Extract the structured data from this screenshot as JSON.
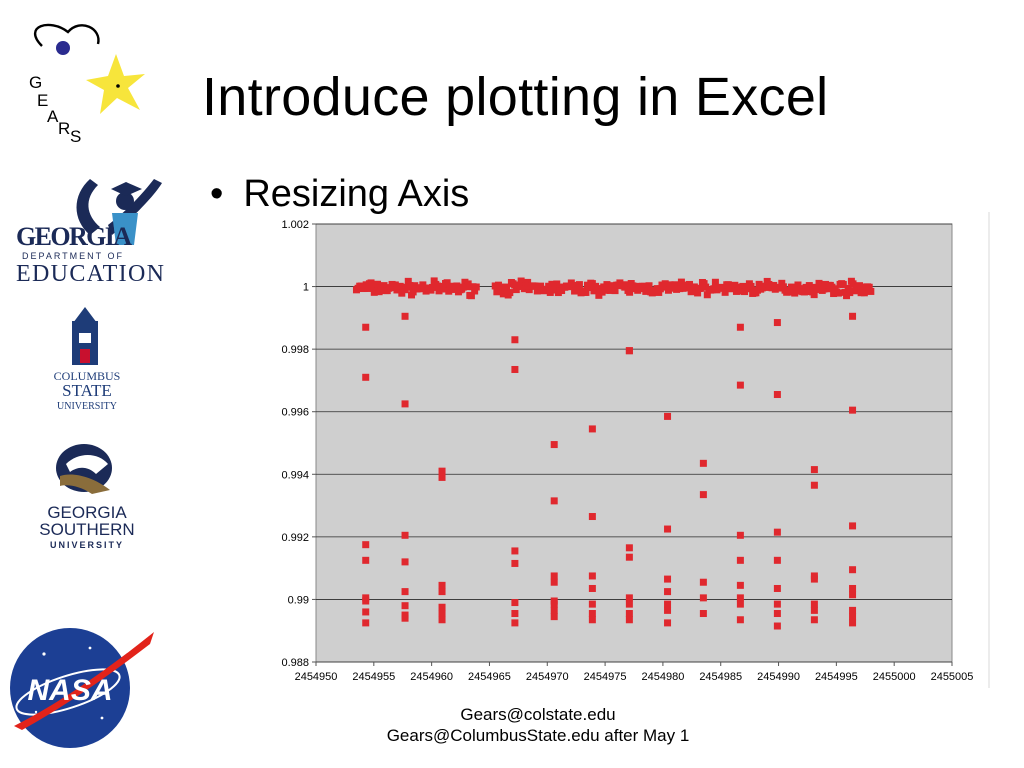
{
  "slide": {
    "title": "Introduce plotting in Excel",
    "bullet": "Resizing Axis",
    "footer_line1": "Gears@colstate.edu",
    "footer_line2": "Gears@ColumbusState.edu after May 1"
  },
  "logos": {
    "gears": {
      "letters": [
        "G",
        "E",
        "A",
        "R",
        "S"
      ]
    },
    "georgia_doe": {
      "line1": "GEORGIA",
      "line2": "DEPARTMENT OF",
      "line3": "EDUCATION"
    },
    "columbus_state": {
      "line1": "COLUMBUS",
      "line2": "STATE",
      "line3": "UNIVERSITY"
    },
    "georgia_southern": {
      "line1": "GEORGIA",
      "line2": "SOUTHERN",
      "line3": "UNIVERSITY"
    },
    "nasa": {
      "text": "NASA"
    }
  },
  "colors": {
    "marker": "#e0282e",
    "plot_bg": "#cfcfcf",
    "gridline": "#2a2a2a",
    "doe_navy": "#1b2a57",
    "csu_navy": "#1e3c78",
    "nasa_blue": "#1c3f94",
    "nasa_red": "#e2231a",
    "star_yellow": "#f7e53b"
  },
  "chart_data": {
    "type": "scatter",
    "title": "",
    "xlabel": "",
    "ylabel": "",
    "xlim": [
      2454950,
      2455005
    ],
    "ylim": [
      0.988,
      1.002
    ],
    "grid": true,
    "legend": "none",
    "x_ticks": [
      "2454950",
      "2454955",
      "2454960",
      "2454965",
      "2454970",
      "2454975",
      "2454980",
      "2454985",
      "2454990",
      "2454995",
      "2455000",
      "2455005"
    ],
    "y_ticks": [
      "0.988",
      "0.99",
      "0.992",
      "0.994",
      "0.996",
      "0.998",
      "1",
      "1.002"
    ],
    "baseline": {
      "segments": [
        [
          2454953.5,
          2454964
        ],
        [
          2454965.5,
          2454998
        ]
      ],
      "y_center": 0.99995,
      "y_scatter": 0.00028,
      "spacing": 0.14
    },
    "series": [
      {
        "x": [
          2454954.3,
          2454954.3,
          2454954.3,
          2454954.3,
          2454954.3,
          2454954.3,
          2454954.3,
          2454954.3,
          2454957.7,
          2454957.7,
          2454957.7,
          2454957.7,
          2454957.7,
          2454957.7,
          2454957.7,
          2454957.7,
          2454960.9,
          2454960.9,
          2454960.9,
          2454960.9,
          2454960.9,
          2454960.9,
          2454960.9,
          2454967.2,
          2454967.2,
          2454967.2,
          2454967.2,
          2454967.2,
          2454967.2,
          2454967.2,
          2454970.6,
          2454970.6,
          2454970.6,
          2454970.6,
          2454970.6,
          2454970.6,
          2454970.6,
          2454970.6,
          2454973.9,
          2454973.9,
          2454973.9,
          2454973.9,
          2454973.9,
          2454973.9,
          2454973.9,
          2454977.1,
          2454977.1,
          2454977.1,
          2454977.1,
          2454977.1,
          2454977.1,
          2454977.1,
          2454977.1,
          2454980.4,
          2454980.4,
          2454980.4,
          2454980.4,
          2454980.4,
          2454980.4,
          2454980.4,
          2454983.5,
          2454983.5,
          2454983.5,
          2454983.5,
          2454983.5,
          2454986.7,
          2454986.7,
          2454986.7,
          2454986.7,
          2454986.7,
          2454986.7,
          2454986.7,
          2454986.7,
          2454989.9,
          2454989.9,
          2454989.9,
          2454989.9,
          2454989.9,
          2454989.9,
          2454989.9,
          2454989.9,
          2454993.1,
          2454993.1,
          2454993.1,
          2454993.1,
          2454993.1,
          2454993.1,
          2454993.1,
          2454996.4,
          2454996.4,
          2454996.4,
          2454996.4,
          2454996.4,
          2454996.4,
          2454996.4,
          2454996.4,
          2454996.4
        ],
        "y": [
          0.9987,
          0.9971,
          0.99175,
          0.99125,
          0.99005,
          0.98995,
          0.9896,
          0.98925,
          0.99905,
          0.99625,
          0.99205,
          0.9912,
          0.99025,
          0.9898,
          0.9895,
          0.9894,
          0.9941,
          0.9939,
          0.99045,
          0.99025,
          0.98975,
          0.98955,
          0.98935,
          0.9983,
          0.99735,
          0.99155,
          0.99115,
          0.9899,
          0.98955,
          0.98925,
          0.99495,
          0.99315,
          0.99075,
          0.99055,
          0.98995,
          0.98985,
          0.98965,
          0.98945,
          0.99545,
          0.99265,
          0.99075,
          0.99035,
          0.98985,
          0.98955,
          0.98935,
          0.99795,
          0.99795,
          0.99165,
          0.99135,
          0.99005,
          0.98985,
          0.98955,
          0.98935,
          0.99585,
          0.99225,
          0.99065,
          0.99025,
          0.98985,
          0.98965,
          0.98925,
          0.99435,
          0.99335,
          0.99055,
          0.99005,
          0.98955,
          0.9987,
          0.99685,
          0.99205,
          0.99125,
          0.99045,
          0.99005,
          0.98985,
          0.98935,
          0.99885,
          0.99655,
          0.99215,
          0.99125,
          0.99035,
          0.98985,
          0.98955,
          0.98915,
          0.99415,
          0.99365,
          0.99075,
          0.99065,
          0.98985,
          0.98965,
          0.98935,
          0.99905,
          0.99605,
          0.99235,
          0.99095,
          0.99035,
          0.99015,
          0.98965,
          0.98945,
          0.98925
        ]
      }
    ]
  }
}
